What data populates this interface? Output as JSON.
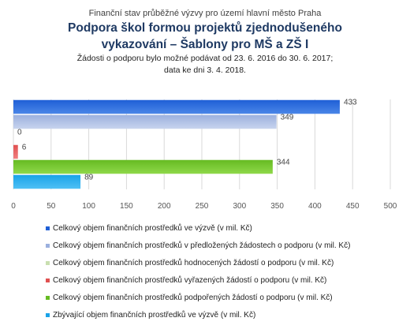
{
  "header": {
    "supertitle": "Finanční stav průběžné výzvy pro území hlavní město Praha",
    "title_line1": "Podpora škol formou projektů zjednodušeného",
    "title_line2": "vykazování – Šablony pro MŠ a ZŠ I",
    "subtitle_line1": "Žádosti o podporu bylo možné podávat od 23. 6. 2016 do 30. 6. 2017;",
    "subtitle_line2": "data ke dni 3. 4. 2018."
  },
  "chart_data": {
    "type": "bar",
    "orientation": "horizontal",
    "title": "Podpora škol formou projektů zjednodušeného vykazování – Šablony pro MŠ a ZŠ I",
    "xlim": [
      0,
      500
    ],
    "xticks": [
      "0",
      "50",
      "100",
      "150",
      "200",
      "250",
      "300",
      "350",
      "400",
      "450",
      "500"
    ],
    "grid": true,
    "legend_position": "bottom",
    "series": [
      {
        "name": "Celkový objem finančních prostředků ve výzvě (v mil. Kč)",
        "value": 433,
        "label": "433",
        "color": "#1f5fd6",
        "gradient_end": "#4a86e8"
      },
      {
        "name": "Celkový objem finančních prostředků v předložených žádostech o podporu (v mil. Kč)",
        "value": 349,
        "label": "349",
        "color": "#9bb0de",
        "gradient_end": "#c8d4ee"
      },
      {
        "name": "Celkový objem finančních prostředků hodnocených žádostí o podporu (v mil. Kč)",
        "value": 0,
        "label": "0",
        "color": "#c9dfb0",
        "gradient_end": "#e4efd6"
      },
      {
        "name": "Celkový objem finančních prostředků vyřazených žádostí o podporu (v mil. Kč)",
        "value": 6,
        "label": "6",
        "color": "#e05050",
        "gradient_end": "#f08080"
      },
      {
        "name": "Celkový objem finančních prostředků podpořených žádostí o podporu (v mil. Kč)",
        "value": 344,
        "label": "344",
        "color": "#66bb22",
        "gradient_end": "#8fd84a"
      },
      {
        "name": "Zbývající objem finančních prostředků ve výzvě (v mil. Kč)",
        "value": 89,
        "label": "89",
        "color": "#1aa3e8",
        "gradient_end": "#4fc0f5"
      }
    ]
  }
}
